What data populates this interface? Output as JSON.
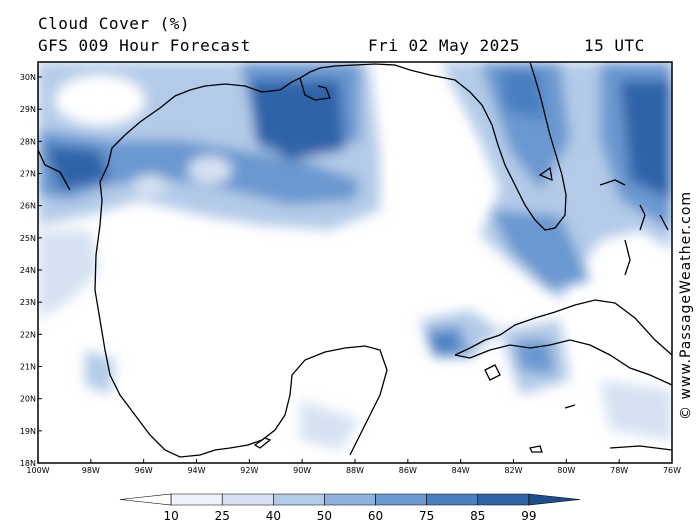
{
  "header": {
    "title": "Cloud Cover (%)",
    "subtitle": "GFS 009 Hour Forecast",
    "date": "Fri 02 May 2025",
    "time": "15 UTC"
  },
  "credit": "© www.PassageWeather.com",
  "axes": {
    "lon_labels": [
      "100W",
      "98W",
      "96W",
      "94W",
      "92W",
      "90W",
      "88W",
      "86W",
      "84W",
      "82W",
      "80W",
      "78W",
      "76W"
    ],
    "lat_labels": [
      "30N",
      "29N",
      "28N",
      "27N",
      "26N",
      "25N",
      "24N",
      "23N",
      "22N",
      "21N",
      "20N",
      "19N",
      "18N"
    ]
  },
  "colorbar": {
    "labels": [
      "10",
      "25",
      "40",
      "50",
      "60",
      "75",
      "85",
      "99"
    ],
    "colors": [
      "#ffffff",
      "#eef3fa",
      "#d6e2f2",
      "#b3cbe8",
      "#8fb2dd",
      "#6a98d0",
      "#4a7fc0",
      "#2f64a8",
      "#1f4e8c"
    ]
  },
  "colors": {
    "land_line": "#000000",
    "cloud_low": "#d6e2f2",
    "cloud_mid": "#6a98d0",
    "cloud_high": "#2f64a8"
  }
}
